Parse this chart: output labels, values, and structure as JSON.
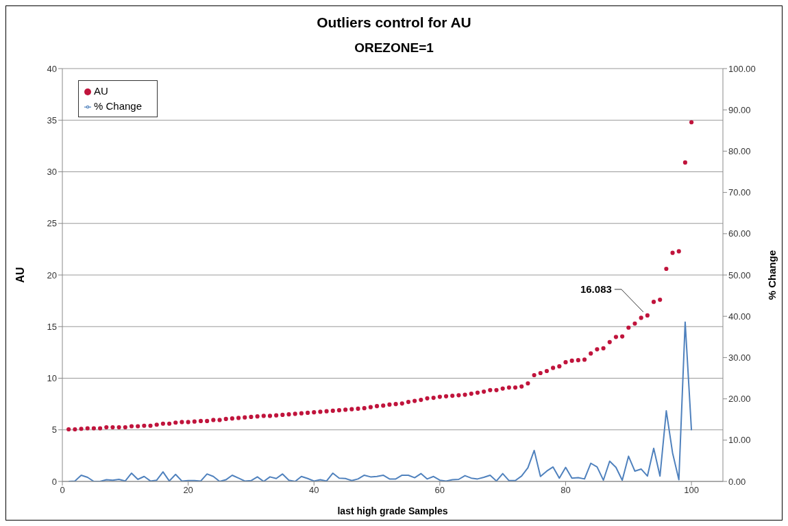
{
  "chart_data": {
    "type": "scatter",
    "title": "Outliers control for AU",
    "subtitle": "OREZONE=1",
    "xlabel": "last high grade Samples",
    "ylabel": "AU",
    "y2label": "% Change",
    "x": [
      1,
      2,
      3,
      4,
      5,
      6,
      7,
      8,
      9,
      10,
      11,
      12,
      13,
      14,
      15,
      16,
      17,
      18,
      19,
      20,
      21,
      22,
      23,
      24,
      25,
      26,
      27,
      28,
      29,
      30,
      31,
      32,
      33,
      34,
      35,
      36,
      37,
      38,
      39,
      40,
      41,
      42,
      43,
      44,
      45,
      46,
      47,
      48,
      49,
      50,
      51,
      52,
      53,
      54,
      55,
      56,
      57,
      58,
      59,
      60,
      61,
      62,
      63,
      64,
      65,
      66,
      67,
      68,
      69,
      70,
      71,
      72,
      73,
      74,
      75,
      76,
      77,
      78,
      79,
      80,
      81,
      82,
      83,
      84,
      85,
      86,
      87,
      88,
      89,
      90,
      91,
      92,
      93,
      94,
      95,
      96,
      97,
      98,
      99,
      100
    ],
    "series": [
      {
        "name": "AU",
        "color": "#c0143c",
        "marker": "circle",
        "values": [
          5.05,
          5.05,
          5.1,
          5.15,
          5.15,
          5.15,
          5.25,
          5.25,
          5.25,
          5.25,
          5.35,
          5.35,
          5.4,
          5.4,
          5.5,
          5.6,
          5.6,
          5.7,
          5.75,
          5.75,
          5.8,
          5.85,
          5.85,
          5.95,
          5.95,
          6.05,
          6.1,
          6.15,
          6.2,
          6.25,
          6.3,
          6.35,
          6.35,
          6.4,
          6.45,
          6.5,
          6.55,
          6.6,
          6.65,
          6.7,
          6.75,
          6.8,
          6.85,
          6.9,
          6.95,
          7.0,
          7.05,
          7.1,
          7.2,
          7.3,
          7.35,
          7.45,
          7.5,
          7.55,
          7.7,
          7.8,
          7.9,
          8.05,
          8.1,
          8.2,
          8.25,
          8.3,
          8.35,
          8.4,
          8.5,
          8.6,
          8.7,
          8.85,
          8.85,
          9.0,
          9.1,
          9.1,
          9.2,
          9.5,
          10.3,
          10.5,
          10.7,
          11.0,
          11.15,
          11.55,
          11.7,
          11.75,
          11.8,
          12.4,
          12.8,
          12.9,
          13.5,
          14.0,
          14.05,
          14.9,
          15.3,
          15.85,
          16.083,
          17.4,
          17.6,
          20.6,
          22.15,
          22.3,
          30.9,
          34.8
        ]
      },
      {
        "name": "% Change",
        "type": "line",
        "axis": "y2",
        "color": "#4f81bd",
        "marker": "none",
        "values": [
          0,
          0.1,
          1.5,
          1.0,
          0,
          0,
          0.4,
          0.3,
          0.5,
          0.1,
          2.0,
          0.5,
          1.2,
          0.1,
          0.3,
          2.3,
          0.1,
          1.7,
          0.1,
          0.2,
          0.2,
          0.1,
          1.8,
          1.2,
          0,
          0.4,
          1.5,
          0.8,
          0.1,
          0.2,
          1.1,
          0,
          1.1,
          0.7,
          1.8,
          0.3,
          0,
          1.2,
          0.7,
          0.1,
          0.4,
          0.1,
          2.0,
          0.8,
          0.7,
          0.2,
          0.6,
          1.5,
          1.1,
          1.2,
          1.5,
          0.6,
          0.6,
          1.5,
          1.5,
          0.9,
          1.9,
          0.6,
          1.2,
          0.3,
          0.1,
          0.4,
          0.5,
          1.4,
          0.8,
          0.6,
          1.0,
          1.5,
          0.1,
          1.9,
          0.2,
          0.2,
          1.3,
          3.3,
          7.5,
          1.2,
          2.5,
          3.5,
          0.8,
          3.4,
          0.8,
          0.9,
          0.6,
          4.4,
          3.5,
          0.3,
          4.9,
          3.4,
          0.3,
          6.1,
          2.5,
          3.0,
          1.3,
          8.0,
          1.3,
          17.1,
          6.9,
          0.4,
          38.6,
          12.4
        ]
      }
    ],
    "xlim": [
      0,
      105
    ],
    "xticks": [
      0,
      20,
      40,
      60,
      80,
      100
    ],
    "ylim": [
      0,
      40
    ],
    "yticks": [
      0,
      5,
      10,
      15,
      20,
      25,
      30,
      35,
      40
    ],
    "y2lim": [
      0,
      100
    ],
    "y2ticks": [
      {
        "value": 0,
        "label": "0.00"
      },
      {
        "value": 10,
        "label": "10.00"
      },
      {
        "value": 20,
        "label": "20.00"
      },
      {
        "value": 30,
        "label": "30.00"
      },
      {
        "value": 40,
        "label": "40.00"
      },
      {
        "value": 50,
        "label": "50.00"
      },
      {
        "value": 60,
        "label": "60.00"
      },
      {
        "value": 70,
        "label": "70.00"
      },
      {
        "value": 80,
        "label": "80.00"
      },
      {
        "value": 90,
        "label": "90.00"
      },
      {
        "value": 100,
        "label": "100.00"
      }
    ],
    "annotations": [
      {
        "text": "16.083",
        "x": 93,
        "y": 16.083
      }
    ],
    "grid": "y",
    "legend": "top left"
  }
}
